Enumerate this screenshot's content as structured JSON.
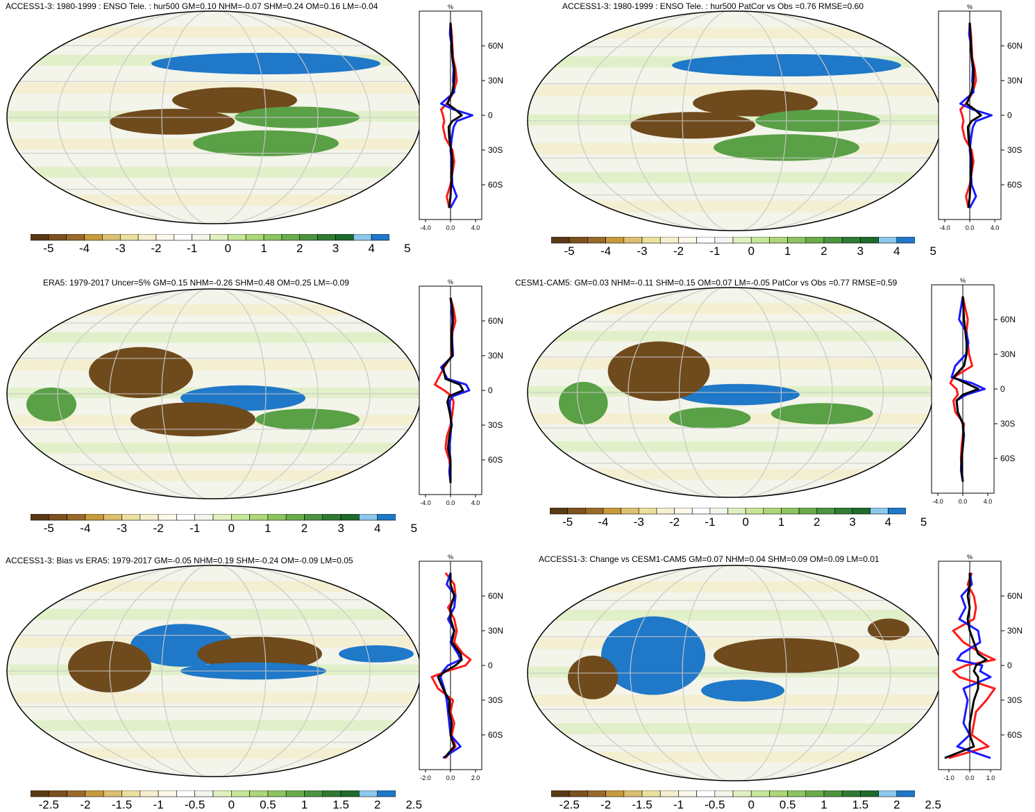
{
  "figure": {
    "panels": [
      {
        "id": "p1",
        "title": "ACCESS1-3: 1980-1999 : ENSO Tele. : hur500 GM=0.10 NHM=-0.07 SHM=0.24 OM=0.16 LM=-0.04",
        "profile_unit": "%",
        "profile_xticks": [
          "-4.0",
          "0.0",
          "4.0"
        ],
        "profile_yticks": [
          "60N",
          "30N",
          "0",
          "30S",
          "60S"
        ],
        "colorbar_labels": [
          "-5",
          "-4",
          "-3",
          "-2",
          "-1",
          "0",
          "1",
          "2",
          "3",
          "4",
          "5"
        ]
      },
      {
        "id": "p2",
        "title": "ACCESS1-3: 1980-1999 : ENSO Tele. : hur500 PatCor vs Obs =0.76 RMSE=0.60",
        "profile_unit": "%",
        "profile_xticks": [
          "-4.0",
          "0.0",
          "4.0"
        ],
        "profile_yticks": [
          "60N",
          "30N",
          "0",
          "30S",
          "60S"
        ],
        "colorbar_labels": [
          "-5",
          "-4",
          "-3",
          "-2",
          "-1",
          "0",
          "1",
          "2",
          "3",
          "4",
          "5"
        ]
      },
      {
        "id": "p3",
        "title": "ERA5: 1979-2017 Uncer=5% GM=0.15 NHM=-0.26 SHM=0.48 OM=0.25 LM=-0.09",
        "profile_unit": "%",
        "profile_xticks": [
          "-4.0",
          "0.0",
          "4.0"
        ],
        "profile_yticks": [
          "60N",
          "30N",
          "0",
          "30S",
          "60S"
        ],
        "colorbar_labels": [
          "-5",
          "-4",
          "-3",
          "-2",
          "-1",
          "0",
          "1",
          "2",
          "3",
          "4",
          "5"
        ]
      },
      {
        "id": "p4",
        "title": "CESM1-CAM5: GM=0.03 NHM=-0.11 SHM=0.15 OM=0.07 LM=-0.05 PatCor vs Obs =0.77 RMSE=0.59",
        "profile_unit": "%",
        "profile_xticks": [
          "-4.0",
          "0.0",
          "4.0"
        ],
        "profile_yticks": [
          "60N",
          "30N",
          "0",
          "30S",
          "60S"
        ],
        "colorbar_labels": [
          "-5",
          "-4",
          "-3",
          "-2",
          "-1",
          "0",
          "1",
          "2",
          "3",
          "4",
          "5"
        ]
      },
      {
        "id": "p5",
        "title": "ACCESS1-3: Bias vs ERA5: 1979-2017 GM=-0.05 NHM=0.19 SHM=-0.24 OM=-0.09 LM=0.05",
        "profile_unit": "%",
        "profile_xticks": [
          "-2.0",
          "0.0",
          "2.0"
        ],
        "profile_yticks": [
          "60N",
          "30N",
          "0",
          "30S",
          "60S"
        ],
        "colorbar_labels": [
          "-2.5",
          "-2",
          "-1.5",
          "-1",
          "-0.5",
          "0",
          "0.5",
          "1",
          "1.5",
          "2",
          "2.5"
        ]
      },
      {
        "id": "p6",
        "title": "ACCESS1-3: Change vs CESM1-CAM5 GM=0.07 NHM=0.04 SHM=0.09 OM=0.09 LM=0.01",
        "profile_unit": "%",
        "profile_xticks": [
          "-1.0",
          "0.0",
          "1.0"
        ],
        "profile_yticks": [
          "60N",
          "30N",
          "0",
          "30S",
          "60S"
        ],
        "colorbar_labels": [
          "-2.5",
          "-2",
          "-1.5",
          "-1",
          "-0.5",
          "0",
          "0.5",
          "1",
          "1.5",
          "2",
          "2.5"
        ]
      }
    ],
    "colors": {
      "colorbar": [
        "#5a3a16",
        "#7b5220",
        "#9a6a2c",
        "#c79a3e",
        "#dcc072",
        "#ece0a0",
        "#f6efcf",
        "#fbf8ea",
        "#ffffff",
        "#f2f6ea",
        "#e0f0c0",
        "#c8e69a",
        "#aed67a",
        "#8cc462",
        "#6aac4c",
        "#4c9440",
        "#317a34",
        "#1f6a2e",
        "#8cc8ec",
        "#1f78c8"
      ],
      "line_red": "#ff1a1a",
      "line_blue": "#1a1aff",
      "line_black": "#000000"
    }
  },
  "chart_data": [
    {
      "type": "heatmap",
      "title": "ACCESS1-3: 1980-1999 : ENSO Tele. : hur500 GM=0.10 NHM=-0.07 SHM=0.24 OM=0.16 LM=-0.04",
      "colorbar": [
        -5,
        -4,
        -3,
        -2,
        -1,
        0,
        1,
        2,
        3,
        4,
        5
      ],
      "profile": {
        "ylim": [
          -90,
          90
        ],
        "xlim": [
          -5,
          5
        ],
        "yticks": [
          "60N",
          "30N",
          "0",
          "30S",
          "60S"
        ],
        "xticks": [
          -4.0,
          0.0,
          4.0
        ],
        "lat": [
          80,
          70,
          60,
          50,
          40,
          30,
          20,
          10,
          5,
          0,
          -5,
          -10,
          -20,
          -30,
          -40,
          -50,
          -60,
          -70,
          -80
        ],
        "series": [
          {
            "values": [
              0.0,
              0.2,
              0.3,
              0.4,
              0.8,
              1.0,
              0.5,
              -0.6,
              -1.5,
              -1.2,
              -1.0,
              -1.2,
              -0.8,
              0.3,
              0.6,
              0.3,
              0.0,
              -0.6,
              -0.2
            ]
          },
          {
            "values": [
              0.0,
              -0.1,
              0.2,
              0.3,
              0.5,
              0.4,
              0.6,
              -1.5,
              0.5,
              3.5,
              1.0,
              0.5,
              0.2,
              0.0,
              0.2,
              0.2,
              0.3,
              1.0,
              0.0
            ]
          },
          {
            "values": [
              0.0,
              0.1,
              0.2,
              0.3,
              0.6,
              0.6,
              0.3,
              -0.5,
              0.8,
              1.8,
              0.3,
              -0.3,
              -0.2,
              0.1,
              0.3,
              0.2,
              0.1,
              0.0,
              -0.2
            ]
          }
        ]
      }
    },
    {
      "type": "heatmap",
      "title": "ACCESS1-3: 1980-1999 : ENSO Tele. : hur500 PatCor vs Obs =0.76 RMSE=0.60",
      "colorbar": [
        -5,
        -4,
        -3,
        -2,
        -1,
        0,
        1,
        2,
        3,
        4,
        5
      ],
      "profile": {
        "ylim": [
          -90,
          90
        ],
        "xlim": [
          -5,
          5
        ],
        "yticks": [
          "60N",
          "30N",
          "0",
          "30S",
          "60S"
        ],
        "xticks": [
          -4.0,
          0.0,
          4.0
        ],
        "lat": [
          80,
          70,
          60,
          50,
          40,
          30,
          20,
          10,
          5,
          0,
          -5,
          -10,
          -20,
          -30,
          -40,
          -50,
          -60,
          -70,
          -80
        ],
        "series": [
          {
            "values": [
              0.0,
              0.2,
              0.3,
              0.4,
              0.8,
              1.0,
              0.5,
              -0.6,
              -1.5,
              -1.2,
              -1.0,
              -1.2,
              -0.8,
              0.3,
              0.6,
              0.3,
              0.0,
              -0.6,
              -0.2
            ]
          },
          {
            "values": [
              0.0,
              -0.1,
              0.2,
              0.3,
              0.5,
              0.4,
              0.6,
              -1.5,
              0.5,
              3.5,
              1.0,
              0.5,
              0.2,
              0.0,
              0.2,
              0.2,
              0.3,
              1.0,
              0.0
            ]
          },
          {
            "values": [
              0.0,
              0.1,
              0.2,
              0.3,
              0.6,
              0.6,
              0.3,
              -0.5,
              0.8,
              1.8,
              0.3,
              -0.3,
              -0.2,
              0.1,
              0.3,
              0.2,
              0.1,
              0.0,
              -0.2
            ]
          }
        ]
      }
    },
    {
      "type": "heatmap",
      "title": "ERA5: 1979-2017 Uncer=5% GM=0.15 NHM=-0.26 SHM=0.48 OM=0.25 LM=-0.09",
      "colorbar": [
        -5,
        -4,
        -3,
        -2,
        -1,
        0,
        1,
        2,
        3,
        4,
        5
      ],
      "profile": {
        "ylim": [
          -90,
          90
        ],
        "xlim": [
          -5,
          5
        ],
        "yticks": [
          "60N",
          "30N",
          "0",
          "30S",
          "60S"
        ],
        "xticks": [
          -4.0,
          0.0,
          4.0
        ],
        "lat": [
          80,
          70,
          60,
          50,
          40,
          30,
          20,
          10,
          5,
          0,
          -5,
          -10,
          -20,
          -30,
          -40,
          -50,
          -60,
          -70,
          -80
        ],
        "series": [
          {
            "values": [
              0.0,
              0.5,
              0.8,
              0.3,
              0.2,
              0.2,
              -1.0,
              -2.0,
              -2.5,
              -1.0,
              0.2,
              0.5,
              0.3,
              0.0,
              -0.6,
              -0.8,
              -0.2,
              0.0,
              0.0
            ]
          },
          {
            "values": [
              0.0,
              0.2,
              0.3,
              0.2,
              0.3,
              0.4,
              -1.5,
              -0.5,
              2.5,
              3.0,
              0.4,
              -0.2,
              0.0,
              0.1,
              0.0,
              -0.2,
              0.0,
              -0.2,
              0.0
            ]
          },
          {
            "values": [
              0.0,
              0.3,
              0.4,
              0.2,
              0.2,
              0.3,
              -1.2,
              -0.8,
              1.5,
              2.0,
              -0.2,
              -0.5,
              -0.1,
              0.2,
              -0.2,
              -0.4,
              0.0,
              0.0,
              0.0
            ]
          }
        ]
      }
    },
    {
      "type": "heatmap",
      "title": "CESM1-CAM5: GM=0.03 NHM=-0.11 SHM=0.15 OM=0.07 LM=-0.05 PatCor vs Obs =0.77 RMSE=0.59",
      "colorbar": [
        -5,
        -4,
        -3,
        -2,
        -1,
        0,
        1,
        2,
        3,
        4,
        5
      ],
      "profile": {
        "ylim": [
          -90,
          90
        ],
        "xlim": [
          -5,
          5
        ],
        "yticks": [
          "60N",
          "30N",
          "0",
          "30S",
          "60S"
        ],
        "xticks": [
          -4.0,
          0.0,
          4.0
        ],
        "lat": [
          80,
          70,
          60,
          50,
          40,
          30,
          20,
          10,
          5,
          0,
          -5,
          -10,
          -20,
          -30,
          -40,
          -50,
          -60,
          -70,
          -80
        ],
        "series": [
          {
            "values": [
              0.0,
              0.4,
              0.8,
              0.6,
              0.8,
              1.0,
              1.5,
              -1.5,
              -2.0,
              -1.0,
              -0.8,
              -1.5,
              -1.2,
              0.2,
              0.0,
              -0.2,
              -0.3,
              -0.2,
              0.0
            ]
          },
          {
            "values": [
              0.0,
              -0.3,
              -0.6,
              0.5,
              0.9,
              0.5,
              -1.2,
              -1.8,
              1.5,
              3.5,
              0.5,
              -1.0,
              -0.8,
              0.0,
              0.2,
              0.0,
              -0.2,
              -0.3,
              0.0
            ]
          },
          {
            "values": [
              0.0,
              0.1,
              0.2,
              0.4,
              0.6,
              0.6,
              0.2,
              -1.5,
              0.5,
              2.5,
              0.0,
              -1.0,
              -0.8,
              0.0,
              0.1,
              0.0,
              -0.2,
              -0.2,
              0.0
            ]
          }
        ]
      }
    },
    {
      "type": "heatmap",
      "title": "ACCESS1-3: Bias vs ERA5: 1979-2017 GM=-0.05 NHM=0.19 SHM=-0.24 OM=-0.09 LM=0.05",
      "colorbar": [
        -2.5,
        -2,
        -1.5,
        -1,
        -0.5,
        0,
        0.5,
        1,
        1.5,
        2,
        2.5
      ],
      "profile": {
        "ylim": [
          -90,
          90
        ],
        "xlim": [
          -2.5,
          2.5
        ],
        "yticks": [
          "60N",
          "30N",
          "0",
          "30S",
          "60S"
        ],
        "xticks": [
          -2.0,
          0.0,
          2.0
        ],
        "lat": [
          80,
          70,
          60,
          50,
          40,
          30,
          20,
          10,
          5,
          0,
          -5,
          -10,
          -20,
          -30,
          -40,
          -50,
          -60,
          -70,
          -80
        ],
        "series": [
          {
            "values": [
              -0.4,
              0.3,
              0.4,
              -0.2,
              0.3,
              0.5,
              0.3,
              1.0,
              1.6,
              1.2,
              -0.3,
              -1.5,
              -1.0,
              0.2,
              0.0,
              0.3,
              0.1,
              0.4,
              -0.4
            ]
          },
          {
            "values": [
              0.0,
              -0.3,
              0.4,
              0.3,
              -0.2,
              0.3,
              0.0,
              0.6,
              0.8,
              -0.2,
              -0.6,
              -0.8,
              -0.5,
              -0.3,
              -0.2,
              -0.1,
              0.0,
              0.8,
              -0.6
            ]
          },
          {
            "values": [
              0.0,
              0.0,
              0.3,
              0.0,
              0.0,
              0.3,
              0.1,
              0.8,
              0.9,
              0.4,
              -0.4,
              -1.0,
              -0.6,
              -0.1,
              -0.1,
              0.1,
              0.0,
              0.3,
              -0.5
            ]
          }
        ]
      }
    },
    {
      "type": "heatmap",
      "title": "ACCESS1-3: Change vs CESM1-CAM5 GM=0.07 NHM=0.04 SHM=0.09 OM=0.09 LM=0.01",
      "colorbar": [
        -2.5,
        -2,
        -1.5,
        -1,
        -0.5,
        0,
        0.5,
        1,
        1.5,
        2,
        2.5
      ],
      "profile": {
        "ylim": [
          -90,
          90
        ],
        "xlim": [
          -1.5,
          1.5
        ],
        "yticks": [
          "60N",
          "30N",
          "0",
          "30S",
          "60S"
        ],
        "xticks": [
          -1.0,
          0.0,
          1.0
        ],
        "lat": [
          80,
          70,
          60,
          50,
          40,
          30,
          20,
          10,
          5,
          0,
          -5,
          -10,
          -20,
          -30,
          -40,
          -50,
          -60,
          -70,
          -80
        ],
        "series": [
          {
            "values": [
              0.1,
              -0.1,
              0.2,
              0.3,
              0.2,
              -0.8,
              -0.3,
              0.6,
              1.2,
              -0.2,
              -0.8,
              -0.5,
              1.2,
              0.8,
              0.3,
              0.2,
              0.1,
              0.9,
              -1.0
            ]
          },
          {
            "values": [
              0.0,
              0.1,
              -0.4,
              -0.2,
              -0.5,
              0.4,
              0.5,
              -0.4,
              -0.6,
              0.6,
              0.5,
              1.0,
              -0.3,
              -0.1,
              -0.2,
              -0.3,
              0.0,
              -0.6,
              1.0
            ]
          },
          {
            "values": [
              0.0,
              0.0,
              -0.1,
              0.0,
              -0.1,
              0.0,
              0.2,
              0.4,
              0.8,
              0.3,
              0.2,
              0.4,
              0.4,
              0.2,
              0.1,
              0.0,
              0.0,
              0.2,
              -1.2
            ]
          }
        ]
      }
    }
  ]
}
